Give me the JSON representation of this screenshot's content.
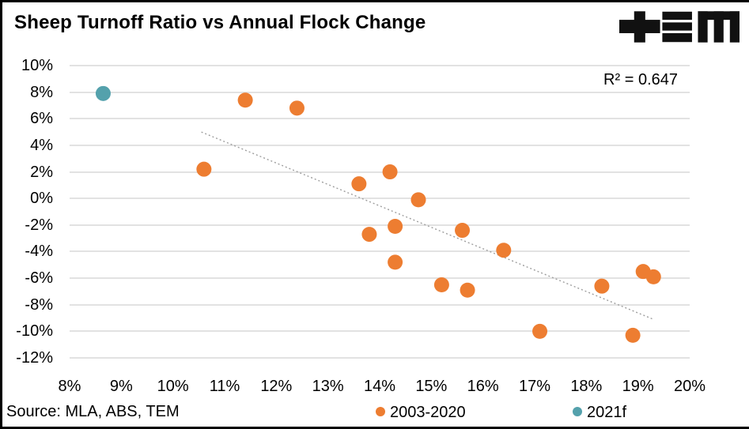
{
  "header": {
    "title": "Sheep Turnoff Ratio vs Annual Flock Change"
  },
  "annotation": {
    "r_squared": "R² = 0.647"
  },
  "source": {
    "text": "Source: MLA, ABS, TEM"
  },
  "legend": [
    {
      "label": "2003-2020",
      "color": "#ED7D31"
    },
    {
      "label": "2021f",
      "color": "#54A1AC"
    }
  ],
  "colors": {
    "accent_orange": "#ED7D31",
    "accent_teal": "#54A1AC",
    "gridline": "#E2E2E2",
    "trendline": "#9E9E9E",
    "text": "#000000",
    "border": "#000000",
    "background": "#FFFFFF"
  },
  "chart_data": {
    "type": "scatter",
    "title": "Sheep Turnoff Ratio vs Annual Flock Change",
    "xlabel": "",
    "ylabel": "",
    "xlim": [
      8,
      20
    ],
    "ylim": [
      -12,
      10
    ],
    "grid": "horizontal",
    "legend_position": "bottom",
    "x_ticks": [
      {
        "v": 8,
        "label": "8%"
      },
      {
        "v": 9,
        "label": "9%"
      },
      {
        "v": 10,
        "label": "10%"
      },
      {
        "v": 11,
        "label": "11%"
      },
      {
        "v": 12,
        "label": "12%"
      },
      {
        "v": 13,
        "label": "13%"
      },
      {
        "v": 14,
        "label": "14%"
      },
      {
        "v": 15,
        "label": "15%"
      },
      {
        "v": 16,
        "label": "16%"
      },
      {
        "v": 17,
        "label": "17%"
      },
      {
        "v": 18,
        "label": "18%"
      },
      {
        "v": 19,
        "label": "19%"
      },
      {
        "v": 20,
        "label": "20%"
      }
    ],
    "y_ticks": [
      {
        "v": 10,
        "label": "10%"
      },
      {
        "v": 8,
        "label": "8%"
      },
      {
        "v": 6,
        "label": "6%"
      },
      {
        "v": 4,
        "label": "4%"
      },
      {
        "v": 2,
        "label": "2%"
      },
      {
        "v": 0,
        "label": "0%"
      },
      {
        "v": -2,
        "label": "-2%"
      },
      {
        "v": -4,
        "label": "-4%"
      },
      {
        "v": -6,
        "label": "-6%"
      },
      {
        "v": -8,
        "label": "-8%"
      },
      {
        "v": -10,
        "label": "-10%"
      },
      {
        "v": -12,
        "label": "-12%"
      }
    ],
    "series": [
      {
        "name": "2003-2020",
        "color": "#ED7D31",
        "points": [
          [
            10.6,
            2.2
          ],
          [
            11.4,
            7.4
          ],
          [
            12.4,
            6.8
          ],
          [
            13.6,
            1.1
          ],
          [
            13.8,
            -2.7
          ],
          [
            14.2,
            2.0
          ],
          [
            14.3,
            -2.1
          ],
          [
            14.3,
            -4.8
          ],
          [
            14.75,
            -0.1
          ],
          [
            15.2,
            -6.5
          ],
          [
            15.6,
            -2.4
          ],
          [
            15.7,
            -6.9
          ],
          [
            16.4,
            -3.9
          ],
          [
            17.1,
            -10.0
          ],
          [
            18.3,
            -6.6
          ],
          [
            18.9,
            -10.3
          ],
          [
            19.1,
            -5.5
          ],
          [
            19.3,
            -5.9
          ]
        ]
      },
      {
        "name": "2021f",
        "color": "#54A1AC",
        "points": [
          [
            8.65,
            7.9
          ]
        ]
      }
    ],
    "trendline": {
      "x1": 10.55,
      "y1": 5.0,
      "x2": 19.3,
      "y2": -9.1,
      "style": "dotted",
      "r_squared": 0.647
    }
  }
}
